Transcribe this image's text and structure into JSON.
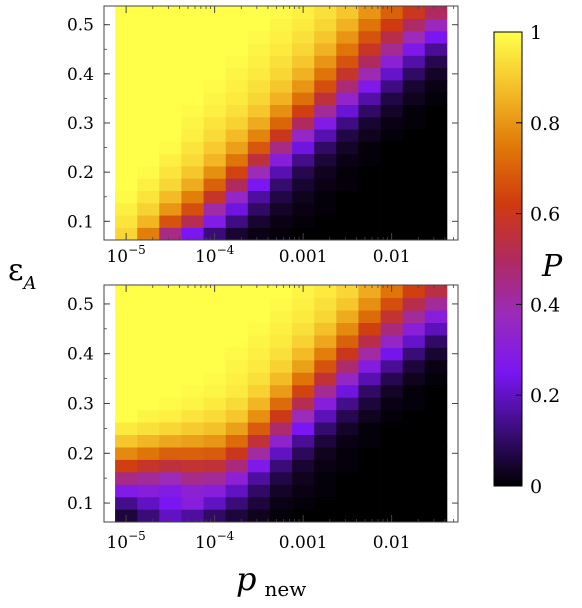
{
  "figure": {
    "ylabel_main": "ε",
    "ylabel_sub": "A",
    "xlabel_main": "p",
    "xlabel_sub": "new",
    "colorbar_label": "P"
  },
  "chart_data": [
    {
      "type": "heatmap",
      "panel": "top",
      "xscale": "log",
      "x": [
        1e-05,
        1.78e-05,
        3.16e-05,
        5.62e-05,
        0.0001,
        0.000178,
        0.000316,
        0.000562,
        0.001,
        0.00178,
        0.00316,
        0.00562,
        0.01,
        0.0178,
        0.0316
      ],
      "y": [
        0.075,
        0.1,
        0.125,
        0.15,
        0.175,
        0.2,
        0.225,
        0.25,
        0.275,
        0.3,
        0.325,
        0.35,
        0.375,
        0.4,
        0.425,
        0.45,
        0.475,
        0.5,
        0.525
      ],
      "xticks": [
        "10^-5",
        "10^-4",
        "0.001",
        "0.01"
      ],
      "yticks": [
        "0.1",
        "0.2",
        "0.3",
        "0.4",
        "0.5"
      ],
      "ylim": [
        0.062,
        0.538
      ],
      "values": [
        [
          0.92,
          0.76,
          0.45,
          0.25,
          0.12,
          0.05,
          0.02,
          0.01,
          0,
          0,
          0,
          0,
          0,
          0,
          0
        ],
        [
          0.95,
          0.86,
          0.67,
          0.52,
          0.28,
          0.13,
          0.05,
          0.02,
          0.01,
          0,
          0,
          0,
          0,
          0,
          0
        ],
        [
          0.97,
          0.91,
          0.8,
          0.66,
          0.4,
          0.23,
          0.1,
          0.04,
          0.02,
          0.01,
          0,
          0,
          0,
          0,
          0
        ],
        [
          0.99,
          0.95,
          0.87,
          0.76,
          0.58,
          0.35,
          0.16,
          0.07,
          0.03,
          0.01,
          0,
          0,
          0,
          0,
          0
        ],
        [
          1.0,
          0.97,
          0.92,
          0.84,
          0.7,
          0.5,
          0.25,
          0.11,
          0.05,
          0.02,
          0.01,
          0,
          0,
          0,
          0
        ],
        [
          1.0,
          0.99,
          0.95,
          0.89,
          0.79,
          0.64,
          0.38,
          0.18,
          0.08,
          0.03,
          0.01,
          0,
          0,
          0,
          0
        ],
        [
          1.0,
          1.0,
          0.97,
          0.93,
          0.86,
          0.74,
          0.55,
          0.3,
          0.14,
          0.06,
          0.02,
          0.01,
          0,
          0,
          0
        ],
        [
          1.0,
          1.0,
          0.99,
          0.95,
          0.9,
          0.82,
          0.68,
          0.45,
          0.23,
          0.1,
          0.04,
          0.01,
          0,
          0,
          0
        ],
        [
          1.0,
          1.0,
          1.0,
          0.97,
          0.93,
          0.87,
          0.77,
          0.6,
          0.35,
          0.18,
          0.07,
          0.03,
          0.01,
          0,
          0
        ],
        [
          1.0,
          1.0,
          1.0,
          0.98,
          0.95,
          0.91,
          0.84,
          0.71,
          0.5,
          0.28,
          0.13,
          0.05,
          0.02,
          0.01,
          0
        ],
        [
          1.0,
          1.0,
          1.0,
          0.99,
          0.97,
          0.94,
          0.89,
          0.79,
          0.63,
          0.42,
          0.22,
          0.1,
          0.04,
          0.01,
          0
        ],
        [
          1.0,
          1.0,
          1.0,
          1.0,
          0.98,
          0.96,
          0.92,
          0.85,
          0.73,
          0.55,
          0.34,
          0.17,
          0.07,
          0.03,
          0.01
        ],
        [
          1.0,
          1.0,
          1.0,
          1.0,
          0.99,
          0.97,
          0.94,
          0.89,
          0.8,
          0.66,
          0.47,
          0.27,
          0.13,
          0.05,
          0.02
        ],
        [
          1.0,
          1.0,
          1.0,
          1.0,
          1.0,
          0.98,
          0.96,
          0.92,
          0.85,
          0.74,
          0.58,
          0.39,
          0.21,
          0.1,
          0.04
        ],
        [
          1.0,
          1.0,
          1.0,
          1.0,
          1.0,
          0.99,
          0.97,
          0.94,
          0.89,
          0.8,
          0.67,
          0.5,
          0.32,
          0.17,
          0.08
        ],
        [
          1.0,
          1.0,
          1.0,
          1.0,
          1.0,
          1.0,
          0.98,
          0.96,
          0.92,
          0.85,
          0.74,
          0.59,
          0.43,
          0.27,
          0.15
        ],
        [
          1.0,
          1.0,
          1.0,
          1.0,
          1.0,
          1.0,
          0.99,
          0.97,
          0.94,
          0.89,
          0.8,
          0.67,
          0.53,
          0.38,
          0.25
        ],
        [
          1.0,
          1.0,
          1.0,
          1.0,
          1.0,
          1.0,
          1.0,
          0.98,
          0.96,
          0.92,
          0.85,
          0.74,
          0.62,
          0.49,
          0.37
        ],
        [
          1.0,
          1.0,
          1.0,
          1.0,
          1.0,
          1.0,
          1.0,
          0.99,
          0.97,
          0.94,
          0.89,
          0.8,
          0.7,
          0.6,
          0.5
        ]
      ]
    },
    {
      "type": "heatmap",
      "panel": "bottom",
      "xscale": "log",
      "x": [
        1e-05,
        1.78e-05,
        3.16e-05,
        5.62e-05,
        0.0001,
        0.000178,
        0.000316,
        0.000562,
        0.001,
        0.00178,
        0.00316,
        0.00562,
        0.01,
        0.0178,
        0.0316
      ],
      "y": [
        0.075,
        0.1,
        0.125,
        0.15,
        0.175,
        0.2,
        0.225,
        0.25,
        0.275,
        0.3,
        0.325,
        0.35,
        0.375,
        0.4,
        0.425,
        0.45,
        0.475,
        0.5,
        0.525
      ],
      "xticks": [
        "10^-5",
        "10^-4",
        "0.001",
        "0.01"
      ],
      "yticks": [
        "0.1",
        "0.2",
        "0.3",
        "0.4",
        "0.5"
      ],
      "ylim": [
        0.062,
        0.538
      ],
      "values": [
        [
          0.06,
          0.12,
          0.2,
          0.16,
          0.1,
          0.06,
          0.03,
          0.01,
          0,
          0,
          0,
          0,
          0,
          0,
          0
        ],
        [
          0.14,
          0.2,
          0.25,
          0.3,
          0.2,
          0.12,
          0.06,
          0.02,
          0.01,
          0,
          0,
          0,
          0,
          0,
          0
        ],
        [
          0.28,
          0.3,
          0.28,
          0.32,
          0.3,
          0.2,
          0.1,
          0.04,
          0.02,
          0.01,
          0,
          0,
          0,
          0,
          0
        ],
        [
          0.45,
          0.42,
          0.38,
          0.44,
          0.42,
          0.32,
          0.16,
          0.07,
          0.03,
          0.01,
          0,
          0,
          0,
          0,
          0
        ],
        [
          0.63,
          0.58,
          0.55,
          0.57,
          0.56,
          0.46,
          0.27,
          0.12,
          0.05,
          0.02,
          0.01,
          0,
          0,
          0,
          0
        ],
        [
          0.78,
          0.74,
          0.7,
          0.7,
          0.69,
          0.6,
          0.41,
          0.2,
          0.09,
          0.03,
          0.01,
          0,
          0,
          0,
          0
        ],
        [
          0.89,
          0.86,
          0.83,
          0.82,
          0.8,
          0.72,
          0.56,
          0.33,
          0.15,
          0.06,
          0.02,
          0.01,
          0,
          0,
          0
        ],
        [
          0.96,
          0.94,
          0.92,
          0.9,
          0.88,
          0.82,
          0.69,
          0.48,
          0.25,
          0.11,
          0.04,
          0.01,
          0,
          0,
          0
        ],
        [
          1.0,
          0.98,
          0.97,
          0.95,
          0.93,
          0.89,
          0.79,
          0.61,
          0.38,
          0.19,
          0.08,
          0.03,
          0.01,
          0,
          0
        ],
        [
          1.0,
          1.0,
          0.99,
          0.98,
          0.96,
          0.93,
          0.86,
          0.72,
          0.52,
          0.3,
          0.14,
          0.06,
          0.02,
          0.01,
          0
        ],
        [
          1.0,
          1.0,
          1.0,
          0.99,
          0.98,
          0.96,
          0.91,
          0.81,
          0.64,
          0.43,
          0.23,
          0.1,
          0.04,
          0.01,
          0
        ],
        [
          1.0,
          1.0,
          1.0,
          1.0,
          0.99,
          0.97,
          0.94,
          0.87,
          0.74,
          0.56,
          0.35,
          0.18,
          0.08,
          0.03,
          0.01
        ],
        [
          1.0,
          1.0,
          1.0,
          1.0,
          1.0,
          0.98,
          0.96,
          0.91,
          0.82,
          0.67,
          0.48,
          0.29,
          0.15,
          0.06,
          0.02
        ],
        [
          1.0,
          1.0,
          1.0,
          1.0,
          1.0,
          0.99,
          0.97,
          0.94,
          0.87,
          0.76,
          0.6,
          0.41,
          0.24,
          0.12,
          0.05
        ],
        [
          1.0,
          1.0,
          1.0,
          1.0,
          1.0,
          1.0,
          0.98,
          0.96,
          0.91,
          0.83,
          0.7,
          0.53,
          0.35,
          0.21,
          0.1
        ],
        [
          1.0,
          1.0,
          1.0,
          1.0,
          1.0,
          1.0,
          0.99,
          0.97,
          0.94,
          0.88,
          0.78,
          0.63,
          0.46,
          0.31,
          0.19
        ],
        [
          1.0,
          1.0,
          1.0,
          1.0,
          1.0,
          1.0,
          1.0,
          0.98,
          0.96,
          0.92,
          0.84,
          0.72,
          0.57,
          0.42,
          0.3
        ],
        [
          1.0,
          1.0,
          1.0,
          1.0,
          1.0,
          1.0,
          1.0,
          0.99,
          0.97,
          0.94,
          0.89,
          0.79,
          0.66,
          0.53,
          0.42
        ],
        [
          1.0,
          1.0,
          1.0,
          1.0,
          1.0,
          1.0,
          1.0,
          1.0,
          0.98,
          0.96,
          0.92,
          0.84,
          0.74,
          0.63,
          0.54
        ]
      ]
    }
  ],
  "colorbar": {
    "range": [
      0,
      1
    ],
    "ticks": [
      "0",
      "0.2",
      "0.4",
      "0.6",
      "0.8",
      "1"
    ],
    "colormap_stops": [
      {
        "v": 0.0,
        "color": "#000000"
      },
      {
        "v": 0.12,
        "color": "#3a0c78"
      },
      {
        "v": 0.25,
        "color": "#7a16f2"
      },
      {
        "v": 0.38,
        "color": "#9b2bb8"
      },
      {
        "v": 0.5,
        "color": "#b02a5e"
      },
      {
        "v": 0.62,
        "color": "#cf3a10"
      },
      {
        "v": 0.75,
        "color": "#e07a08"
      },
      {
        "v": 0.88,
        "color": "#f5c12a"
      },
      {
        "v": 1.0,
        "color": "#ffff4a"
      }
    ]
  }
}
